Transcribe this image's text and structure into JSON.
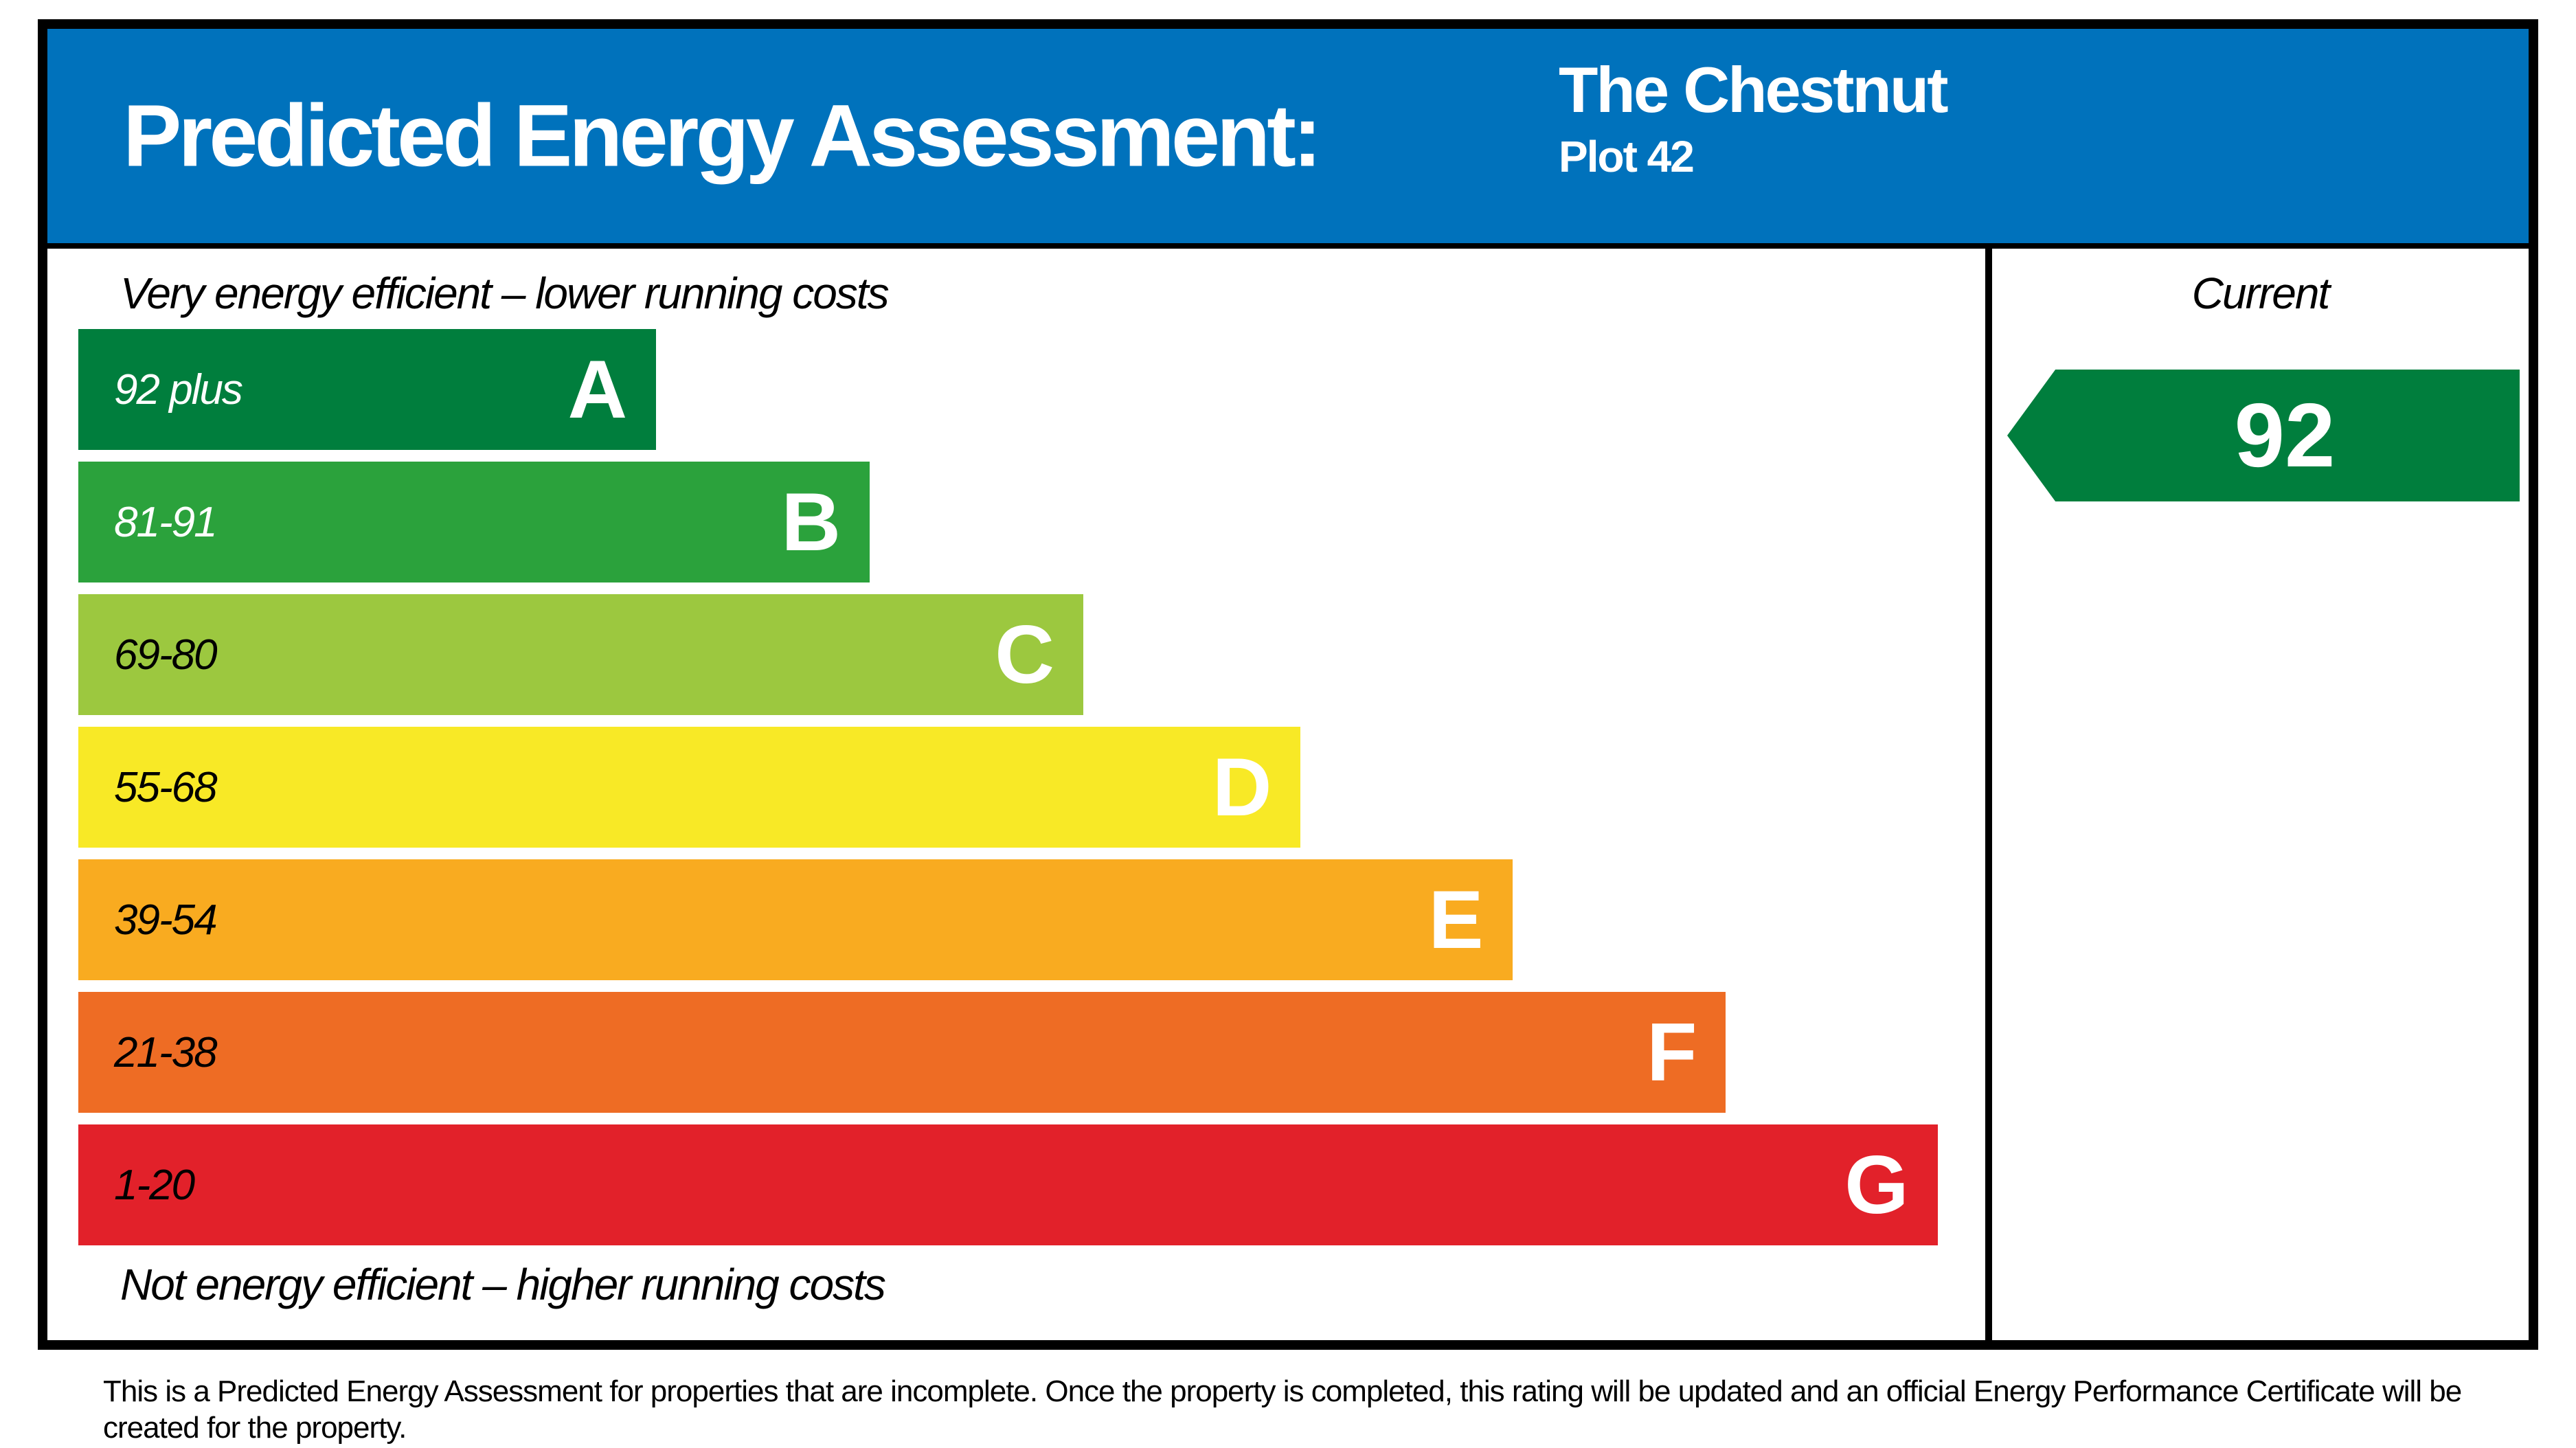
{
  "header": {
    "title": "Predicted Energy Assessment:",
    "property_name": "The Chestnut",
    "plot": "Plot 42",
    "background": "#0072BC",
    "text_color": "#FFFFFF"
  },
  "chart_data": {
    "type": "bar",
    "title": "Predicted Energy Assessment",
    "top_label": "Very energy efficient – lower running costs",
    "bottom_label": "Not energy efficient – higher running costs",
    "current_column_header": "Current",
    "bands": [
      {
        "letter": "A",
        "range": "92 plus",
        "color": "#007E3D",
        "range_text_color": "#FFFFFF",
        "width_pct": 30.3
      },
      {
        "letter": "B",
        "range": "81-91",
        "color": "#2BA23C",
        "range_text_color": "#FFFFFF",
        "width_pct": 41.5
      },
      {
        "letter": "C",
        "range": "69-80",
        "color": "#9CC83F",
        "range_text_color": "#000000",
        "width_pct": 52.7
      },
      {
        "letter": "D",
        "range": "55-68",
        "color": "#F8E926",
        "range_text_color": "#000000",
        "width_pct": 64.1
      },
      {
        "letter": "E",
        "range": "39-54",
        "color": "#F9AB20",
        "range_text_color": "#000000",
        "width_pct": 75.2
      },
      {
        "letter": "F",
        "range": "21-38",
        "color": "#EE6C24",
        "range_text_color": "#000000",
        "width_pct": 86.4
      },
      {
        "letter": "G",
        "range": "1-20",
        "color": "#E2212A",
        "range_text_color": "#000000",
        "width_pct": 97.5
      }
    ],
    "current_rating": {
      "value": "92",
      "band": "A",
      "arrow_color": "#007E3D"
    },
    "legend_position": "right-column",
    "grid": false
  },
  "footer": {
    "text": "This is a Predicted Energy Assessment for properties that are incomplete. Once the property is completed, this rating will be updated and an official Energy Performance Certificate will be created for the property."
  }
}
